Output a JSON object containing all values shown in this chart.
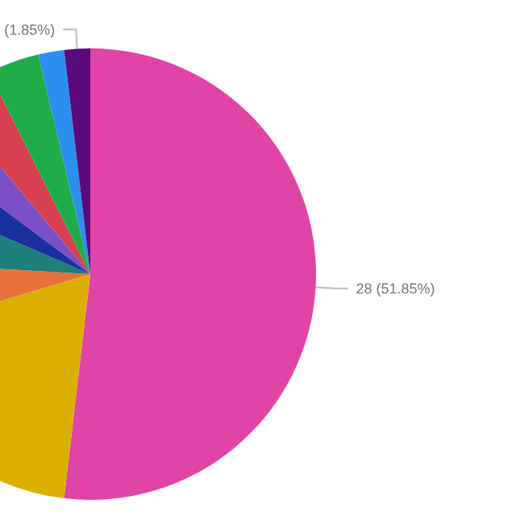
{
  "chart_data": {
    "type": "pie",
    "categories": [
      null,
      null,
      null,
      null,
      null,
      null,
      null,
      null,
      null,
      null
    ],
    "values": [
      51.85,
      18.52,
      5.56,
      5.56,
      3.7,
      3.7,
      3.7,
      3.7,
      1.85,
      1.85
    ],
    "colors": [
      "#e044a6",
      "#dcb000",
      "#e8703a",
      "#1f7f7a",
      "#1a2fa0",
      "#7a4fc8",
      "#d84050",
      "#1fad4a",
      "#2b8ff0",
      "#5a0a7a"
    ],
    "value_labels": [
      "28 (51.85%)",
      null,
      null,
      null,
      null,
      null,
      null,
      null,
      null,
      "(1.85%)"
    ]
  }
}
